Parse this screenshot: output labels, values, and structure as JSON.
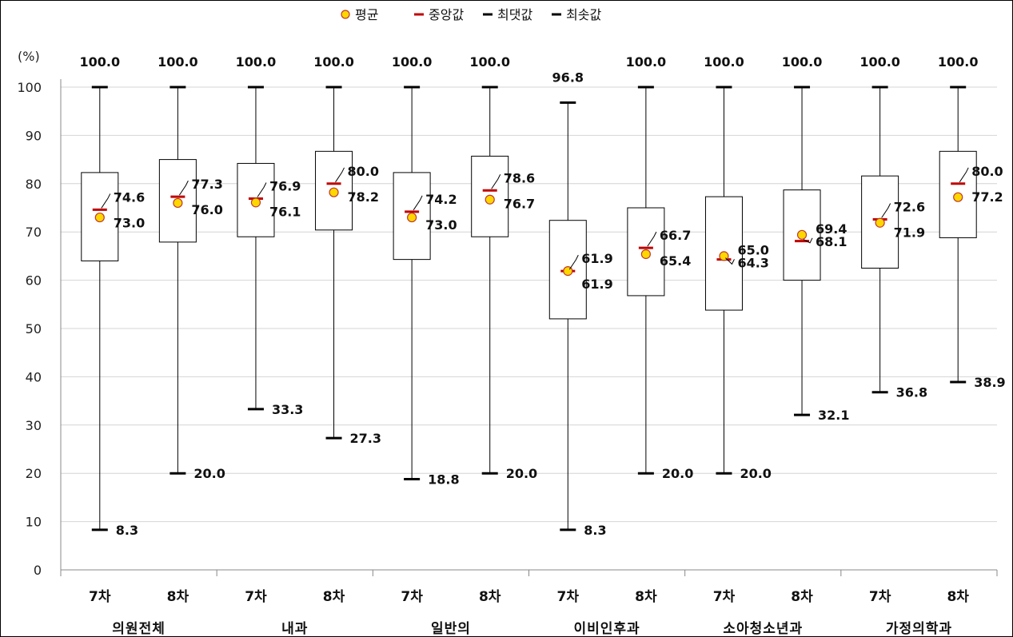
{
  "chart_data": {
    "type": "boxplot",
    "y_unit": "(%)",
    "ylim": [
      0,
      100
    ],
    "yticks": [
      0,
      10,
      20,
      30,
      40,
      50,
      60,
      70,
      80,
      90,
      100
    ],
    "grid": true,
    "legend_position": "top-center",
    "legend": {
      "mean": "평균",
      "median": "중앙값",
      "max": "최댓값",
      "min": "최솟값"
    },
    "groups": [
      "의원전체",
      "내과",
      "일반의",
      "이비인후과",
      "소아청소년과",
      "가정의학과"
    ],
    "rounds": [
      "7차",
      "8차"
    ],
    "colors": {
      "mean_fill": "#ffd700",
      "mean_stroke": "#c0392b",
      "median": "#c00000",
      "whisker": "#000000"
    },
    "boxes": [
      {
        "group": "의원전체",
        "round": "7차",
        "min": 8.3,
        "q1": 64.0,
        "median": 74.6,
        "q3": 82.3,
        "max": 100.0,
        "mean": 73.0
      },
      {
        "group": "의원전체",
        "round": "8차",
        "min": 20.0,
        "q1": 67.9,
        "median": 77.3,
        "q3": 85.0,
        "max": 100.0,
        "mean": 76.0
      },
      {
        "group": "내과",
        "round": "7차",
        "min": 33.3,
        "q1": 69.0,
        "median": 76.9,
        "q3": 84.2,
        "max": 100.0,
        "mean": 76.1
      },
      {
        "group": "내과",
        "round": "8차",
        "min": 27.3,
        "q1": 70.4,
        "median": 80.0,
        "q3": 86.7,
        "max": 100.0,
        "mean": 78.2
      },
      {
        "group": "일반의",
        "round": "7차",
        "min": 18.8,
        "q1": 64.3,
        "median": 74.2,
        "q3": 82.3,
        "max": 100.0,
        "mean": 73.0
      },
      {
        "group": "일반의",
        "round": "8차",
        "min": 20.0,
        "q1": 69.0,
        "median": 78.6,
        "q3": 85.7,
        "max": 100.0,
        "mean": 76.7
      },
      {
        "group": "이비인후과",
        "round": "7차",
        "min": 8.3,
        "q1": 52.0,
        "median": 61.9,
        "q3": 72.4,
        "max": 96.8,
        "mean": 61.9
      },
      {
        "group": "이비인후과",
        "round": "8차",
        "min": 20.0,
        "q1": 56.8,
        "median": 66.7,
        "q3": 75.0,
        "max": 100.0,
        "mean": 65.4
      },
      {
        "group": "소아청소년과",
        "round": "7차",
        "min": 20.0,
        "q1": 53.8,
        "median": 64.3,
        "q3": 77.3,
        "max": 100.0,
        "mean": 65.0
      },
      {
        "group": "소아청소년과",
        "round": "8차",
        "min": 32.1,
        "q1": 60.0,
        "median": 68.1,
        "q3": 78.7,
        "max": 100.0,
        "mean": 69.4
      },
      {
        "group": "가정의학과",
        "round": "7차",
        "min": 36.8,
        "q1": 62.5,
        "median": 72.6,
        "q3": 81.6,
        "max": 100.0,
        "mean": 71.9
      },
      {
        "group": "가정의학과",
        "round": "8차",
        "min": 38.9,
        "q1": 68.8,
        "median": 80.0,
        "q3": 86.7,
        "max": 100.0,
        "mean": 77.2
      }
    ]
  }
}
